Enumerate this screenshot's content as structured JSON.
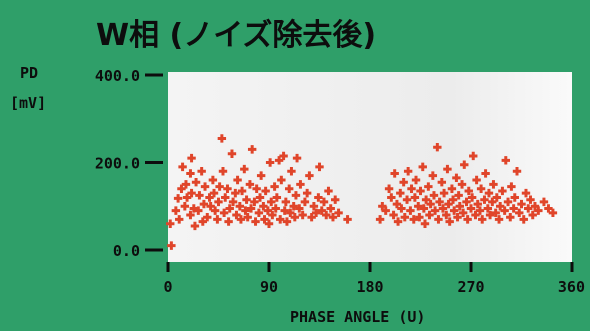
{
  "chart_data": {
    "type": "scatter",
    "title": "W相 (ノイズ除去後)",
    "ylabel_line1": "PD",
    "ylabel_line2": "[mV]",
    "xlabel": "PHASE ANGLE (U)",
    "xlim": [
      0,
      360
    ],
    "ylim": [
      0,
      400
    ],
    "x_ticks": [
      0,
      90,
      180,
      270,
      360
    ],
    "x_tick_labels": [
      "0",
      "90",
      "180",
      "270",
      "360"
    ],
    "y_ticks": [
      0,
      200,
      400
    ],
    "y_tick_labels": [
      "0.0",
      "200.0",
      "400.0"
    ],
    "grid": false,
    "legend": "none",
    "colors": {
      "background": "#2f9f69",
      "plot_background": "#eeeeee",
      "marker": "#e0452a",
      "text": "#0d0d0d"
    },
    "series": [
      {
        "points": [
          [
            3,
            10
          ],
          [
            2,
            60
          ],
          [
            7,
            90
          ],
          [
            9,
            118
          ],
          [
            10,
            70
          ],
          [
            12,
            140
          ],
          [
            13,
            190
          ],
          [
            15,
            100
          ],
          [
            16,
            150
          ],
          [
            17,
            120
          ],
          [
            20,
            80
          ],
          [
            20,
            175
          ],
          [
            21,
            210
          ],
          [
            21,
            130
          ],
          [
            23,
            95
          ],
          [
            24,
            55
          ],
          [
            25,
            155
          ],
          [
            27,
            90
          ],
          [
            28,
            125
          ],
          [
            30,
            180
          ],
          [
            31,
            65
          ],
          [
            32,
            105
          ],
          [
            33,
            145
          ],
          [
            35,
            75
          ],
          [
            37,
            120
          ],
          [
            38,
            100
          ],
          [
            40,
            160
          ],
          [
            41,
            130
          ],
          [
            42,
            90
          ],
          [
            44,
            70
          ],
          [
            45,
            110
          ],
          [
            46,
            145
          ],
          [
            48,
            255
          ],
          [
            49,
            180
          ],
          [
            50,
            85
          ],
          [
            51,
            120
          ],
          [
            53,
            140
          ],
          [
            54,
            65
          ],
          [
            55,
            95
          ],
          [
            57,
            220
          ],
          [
            58,
            110
          ],
          [
            60,
            130
          ],
          [
            61,
            80
          ],
          [
            62,
            160
          ],
          [
            64,
            100
          ],
          [
            65,
            70
          ],
          [
            66,
            135
          ],
          [
            68,
            185
          ],
          [
            69,
            90
          ],
          [
            70,
            115
          ],
          [
            71,
            75
          ],
          [
            73,
            150
          ],
          [
            74,
            95
          ],
          [
            75,
            230
          ],
          [
            77,
            110
          ],
          [
            78,
            65
          ],
          [
            79,
            140
          ],
          [
            81,
            85
          ],
          [
            82,
            120
          ],
          [
            83,
            170
          ],
          [
            85,
            100
          ],
          [
            86,
            70
          ],
          [
            87,
            135
          ],
          [
            89,
            90
          ],
          [
            90,
            60
          ],
          [
            91,
            200
          ],
          [
            92,
            110
          ],
          [
            93,
            80
          ],
          [
            95,
            145
          ],
          [
            96,
            95
          ],
          [
            97,
            120
          ],
          [
            99,
            205
          ],
          [
            100,
            70
          ],
          [
            101,
            160
          ],
          [
            103,
            215
          ],
          [
            104,
            90
          ],
          [
            105,
            110
          ],
          [
            106,
            65
          ],
          [
            108,
            140
          ],
          [
            109,
            85
          ],
          [
            110,
            180
          ],
          [
            112,
            100
          ],
          [
            113,
            75
          ],
          [
            114,
            125
          ],
          [
            115,
            210
          ],
          [
            117,
            95
          ],
          [
            118,
            150
          ],
          [
            120,
            80
          ],
          [
            122,
            110
          ],
          [
            124,
            130
          ],
          [
            126,
            170
          ],
          [
            128,
            75
          ],
          [
            130,
            100
          ],
          [
            132,
            85
          ],
          [
            134,
            120
          ],
          [
            135,
            190
          ],
          [
            137,
            90
          ],
          [
            139,
            110
          ],
          [
            141,
            80
          ],
          [
            143,
            135
          ],
          [
            145,
            95
          ],
          [
            147,
            75
          ],
          [
            149,
            115
          ],
          [
            152,
            85
          ],
          [
            160,
            70
          ],
          [
            189,
            70
          ],
          [
            191,
            100
          ],
          [
            194,
            90
          ],
          [
            197,
            140
          ],
          [
            199,
            120
          ],
          [
            201,
            80
          ],
          [
            202,
            175
          ],
          [
            204,
            105
          ],
          [
            205,
            65
          ],
          [
            207,
            130
          ],
          [
            208,
            95
          ],
          [
            210,
            155
          ],
          [
            211,
            75
          ],
          [
            213,
            115
          ],
          [
            214,
            180
          ],
          [
            216,
            90
          ],
          [
            217,
            140
          ],
          [
            219,
            70
          ],
          [
            220,
            120
          ],
          [
            221,
            160
          ],
          [
            223,
            100
          ],
          [
            224,
            75
          ],
          [
            225,
            135
          ],
          [
            227,
            190
          ],
          [
            228,
            95
          ],
          [
            229,
            60
          ],
          [
            230,
            115
          ],
          [
            232,
            145
          ],
          [
            233,
            80
          ],
          [
            234,
            105
          ],
          [
            236,
            170
          ],
          [
            237,
            125
          ],
          [
            238,
            90
          ],
          [
            240,
            235
          ],
          [
            241,
            70
          ],
          [
            242,
            110
          ],
          [
            244,
            155
          ],
          [
            245,
            95
          ],
          [
            246,
            130
          ],
          [
            248,
            80
          ],
          [
            249,
            185
          ],
          [
            250,
            105
          ],
          [
            251,
            65
          ],
          [
            253,
            140
          ],
          [
            254,
            115
          ],
          [
            255,
            90
          ],
          [
            257,
            165
          ],
          [
            258,
            75
          ],
          [
            259,
            125
          ],
          [
            260,
            100
          ],
          [
            262,
            150
          ],
          [
            263,
            85
          ],
          [
            264,
            195
          ],
          [
            266,
            110
          ],
          [
            267,
            70
          ],
          [
            268,
            135
          ],
          [
            270,
            95
          ],
          [
            271,
            120
          ],
          [
            272,
            215
          ],
          [
            274,
            80
          ],
          [
            275,
            160
          ],
          [
            276,
            105
          ],
          [
            278,
            90
          ],
          [
            279,
            140
          ],
          [
            280,
            70
          ],
          [
            282,
            115
          ],
          [
            283,
            175
          ],
          [
            285,
            95
          ],
          [
            286,
            130
          ],
          [
            287,
            80
          ],
          [
            289,
            110
          ],
          [
            290,
            150
          ],
          [
            292,
            85
          ],
          [
            293,
            120
          ],
          [
            295,
            70
          ],
          [
            296,
            100
          ],
          [
            298,
            135
          ],
          [
            300,
            90
          ],
          [
            301,
            205
          ],
          [
            303,
            110
          ],
          [
            305,
            75
          ],
          [
            306,
            145
          ],
          [
            308,
            95
          ],
          [
            309,
            120
          ],
          [
            311,
            180
          ],
          [
            313,
            85
          ],
          [
            315,
            105
          ],
          [
            317,
            70
          ],
          [
            319,
            130
          ],
          [
            321,
            95
          ],
          [
            323,
            115
          ],
          [
            325,
            80
          ],
          [
            327,
            100
          ],
          [
            330,
            90
          ],
          [
            335,
            110
          ],
          [
            339,
            95
          ],
          [
            343,
            85
          ]
        ]
      }
    ]
  }
}
